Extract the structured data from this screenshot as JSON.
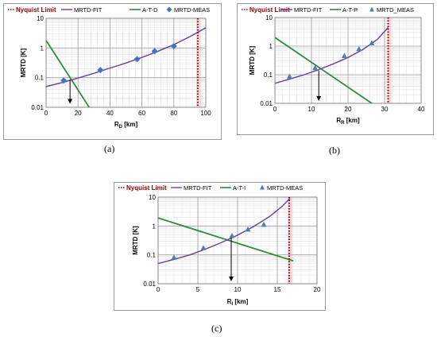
{
  "panels": [
    {
      "key": "a",
      "caption": "(a)",
      "xlabel_main": "R",
      "xlabel_sub": "D",
      "xlabel_unit": " [km]",
      "ylabel": "MRTD [K]",
      "legend": [
        "Nyquist Limit",
        "MRTD-FIT",
        "A-T-D",
        "MRTD-MEAS"
      ],
      "xticks": [
        "0",
        "20",
        "40",
        "60",
        "80",
        "100"
      ],
      "yticks": [
        "0.01",
        "0.1",
        "1",
        "10"
      ]
    },
    {
      "key": "b",
      "caption": "(b)",
      "xlabel_main": "R",
      "xlabel_sub": "R",
      "xlabel_unit": " [km]",
      "ylabel": "MRTD [K]",
      "legend": [
        "Nyquist Limit",
        "MRTD-FIT",
        "A-T-P",
        "MRTD_MEAS"
      ],
      "xticks": [
        "0",
        "10",
        "20",
        "30",
        "40"
      ],
      "yticks": [
        "0.01",
        "0.1",
        "1",
        "10"
      ]
    },
    {
      "key": "c",
      "caption": "(c)",
      "xlabel_main": "R",
      "xlabel_sub": "I",
      "xlabel_unit": " [km]",
      "ylabel": "MRTD [K]",
      "legend": [
        "Nyquist Limit",
        "MRTD-FIT",
        "A-T-I",
        "MRTD-MEAS"
      ],
      "xticks": [
        "0",
        "5",
        "10",
        "15",
        "20"
      ],
      "yticks": [
        "0.01",
        "0.1",
        "1",
        "10"
      ]
    }
  ],
  "colors": {
    "nyquist": "#8b0000",
    "fit": "#6a3d9a",
    "atmos": "#2e8b3e",
    "meas": "#4472c4",
    "grid": "#c8c8c8",
    "arrow": "#000000",
    "nyquist_band": "#f8d7dc"
  },
  "chart_data": [
    {
      "type": "line",
      "title": "",
      "xlabel": "R D [km]",
      "ylabel": "MRTD [K]",
      "xlim": [
        0,
        100
      ],
      "ylim": [
        0.01,
        10
      ],
      "yscale": "log",
      "grid": true,
      "legend_position": "top",
      "series": [
        {
          "name": "MRTD-FIT",
          "kind": "line",
          "x": [
            0,
            10,
            20,
            30,
            40,
            50,
            60,
            70,
            80,
            90,
            100
          ],
          "y": [
            0.05,
            0.068,
            0.097,
            0.14,
            0.21,
            0.31,
            0.48,
            0.77,
            1.3,
            2.4,
            4.8
          ]
        },
        {
          "name": "A-T-D",
          "kind": "line",
          "x": [
            0,
            27
          ],
          "y": [
            1.8,
            0.01
          ]
        },
        {
          "name": "MRTD-MEAS",
          "kind": "scatter",
          "x": [
            11,
            34,
            57,
            68,
            80
          ],
          "y": [
            0.08,
            0.18,
            0.42,
            0.78,
            1.15
          ]
        },
        {
          "name": "Nyquist Limit",
          "kind": "vline",
          "x": [
            95
          ]
        }
      ],
      "annotations": [
        {
          "type": "arrow",
          "x": 15,
          "from_y": 0.085,
          "to_y": 0.014
        }
      ]
    },
    {
      "type": "line",
      "title": "",
      "xlabel": "R R [km]",
      "ylabel": "MRTD [K]",
      "xlim": [
        0,
        40
      ],
      "ylim": [
        0.01,
        10
      ],
      "yscale": "log",
      "grid": true,
      "legend_position": "top",
      "series": [
        {
          "name": "MRTD-FIT",
          "kind": "line",
          "x": [
            0,
            4,
            8,
            12,
            16,
            20,
            24,
            28,
            31
          ],
          "y": [
            0.05,
            0.07,
            0.1,
            0.15,
            0.24,
            0.4,
            0.75,
            1.7,
            4.5
          ]
        },
        {
          "name": "A-T-P",
          "kind": "line",
          "x": [
            0,
            26.5
          ],
          "y": [
            2,
            0.01
          ]
        },
        {
          "name": "MRTD_MEAS",
          "kind": "scatter",
          "x": [
            4,
            11,
            19,
            23,
            26.5
          ],
          "y": [
            0.085,
            0.17,
            0.45,
            0.78,
            1.25
          ]
        },
        {
          "name": "Nyquist Limit",
          "kind": "vline",
          "x": [
            31
          ]
        }
      ],
      "annotations": [
        {
          "type": "arrow",
          "x": 12,
          "from_y": 0.14,
          "to_y": 0.013
        }
      ]
    },
    {
      "type": "line",
      "title": "",
      "xlabel": "R I [km]",
      "ylabel": "MRTD [K]",
      "xlim": [
        0,
        20
      ],
      "ylim": [
        0.01,
        10
      ],
      "yscale": "log",
      "grid": true,
      "legend_position": "top",
      "series": [
        {
          "name": "MRTD-FIT",
          "kind": "line",
          "x": [
            0,
            2,
            4,
            6,
            8,
            10,
            12,
            14,
            15.5,
            16.6
          ],
          "y": [
            0.05,
            0.07,
            0.1,
            0.16,
            0.27,
            0.48,
            0.95,
            2.1,
            4.5,
            9
          ]
        },
        {
          "name": "A-T-I",
          "kind": "line",
          "x": [
            0,
            17
          ],
          "y": [
            1.9,
            0.062
          ]
        },
        {
          "name": "MRTD-MEAS",
          "kind": "scatter",
          "x": [
            2,
            5.7,
            9.3,
            11.3,
            13.3
          ],
          "y": [
            0.08,
            0.17,
            0.45,
            0.75,
            1.1
          ]
        },
        {
          "name": "Nyquist Limit",
          "kind": "vline",
          "x": [
            16.5
          ]
        }
      ],
      "annotations": [
        {
          "type": "arrow",
          "x": 9.2,
          "from_y": 0.4,
          "to_y": 0.013
        }
      ]
    }
  ]
}
